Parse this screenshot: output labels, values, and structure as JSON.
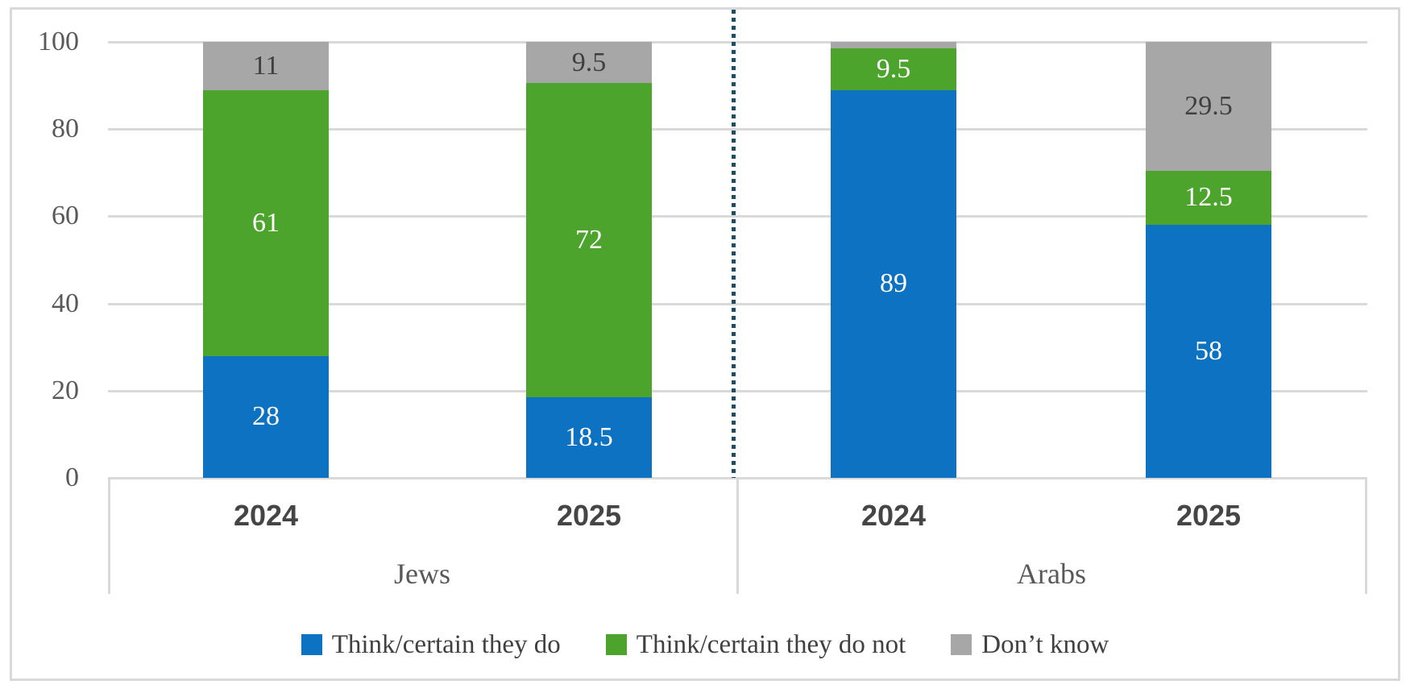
{
  "chart_data": {
    "type": "bar",
    "subtype": "stacked-column",
    "title": "",
    "xlabel": "",
    "ylabel": "",
    "ylim": [
      0,
      100
    ],
    "yticks": [
      0,
      20,
      40,
      60,
      80,
      100
    ],
    "grid": true,
    "legend_position": "bottom",
    "series": [
      {
        "name": "Think/certain they do",
        "color": "#0D72C1",
        "slug": "think-certain-they-do"
      },
      {
        "name": "Think/certain they do not",
        "color": "#4CA42D",
        "slug": "think-certain-they-do-not"
      },
      {
        "name": "Don’t know",
        "color": "#A7A7A7",
        "slug": "dont-know"
      }
    ],
    "groups": [
      {
        "label": "Jews",
        "bars": [
          {
            "category": "2024",
            "values": [
              28,
              61,
              11
            ],
            "labels": [
              "28",
              "61",
              "11"
            ]
          },
          {
            "category": "2025",
            "values": [
              18.5,
              72,
              9.5
            ],
            "labels": [
              "18.5",
              "72",
              "9.5"
            ]
          }
        ]
      },
      {
        "label": "Arabs",
        "bars": [
          {
            "category": "2024",
            "values": [
              89,
              9.5,
              1.5
            ],
            "labels": [
              "89",
              "9.5",
              ""
            ]
          },
          {
            "category": "2025",
            "values": [
              58,
              12.5,
              29.5
            ],
            "labels": [
              "58",
              "12.5",
              "29.5"
            ]
          }
        ]
      }
    ],
    "separator_note": "dotted vertical line separates Jews and Arabs groups"
  },
  "colors": {
    "blue_series": "#0D72C1",
    "green_series": "#4CA42D",
    "gray_series": "#A7A7A7",
    "gridline": "#D9D9D9",
    "frame_border": "#D9D9D9",
    "axis_text": "#595959",
    "year_text": "#454545",
    "white_label": "#FFFFFF",
    "dark_label_on_gray": "#3F3F3F",
    "divider_dots": "#1D4F63",
    "background": "#FFFFFF"
  }
}
